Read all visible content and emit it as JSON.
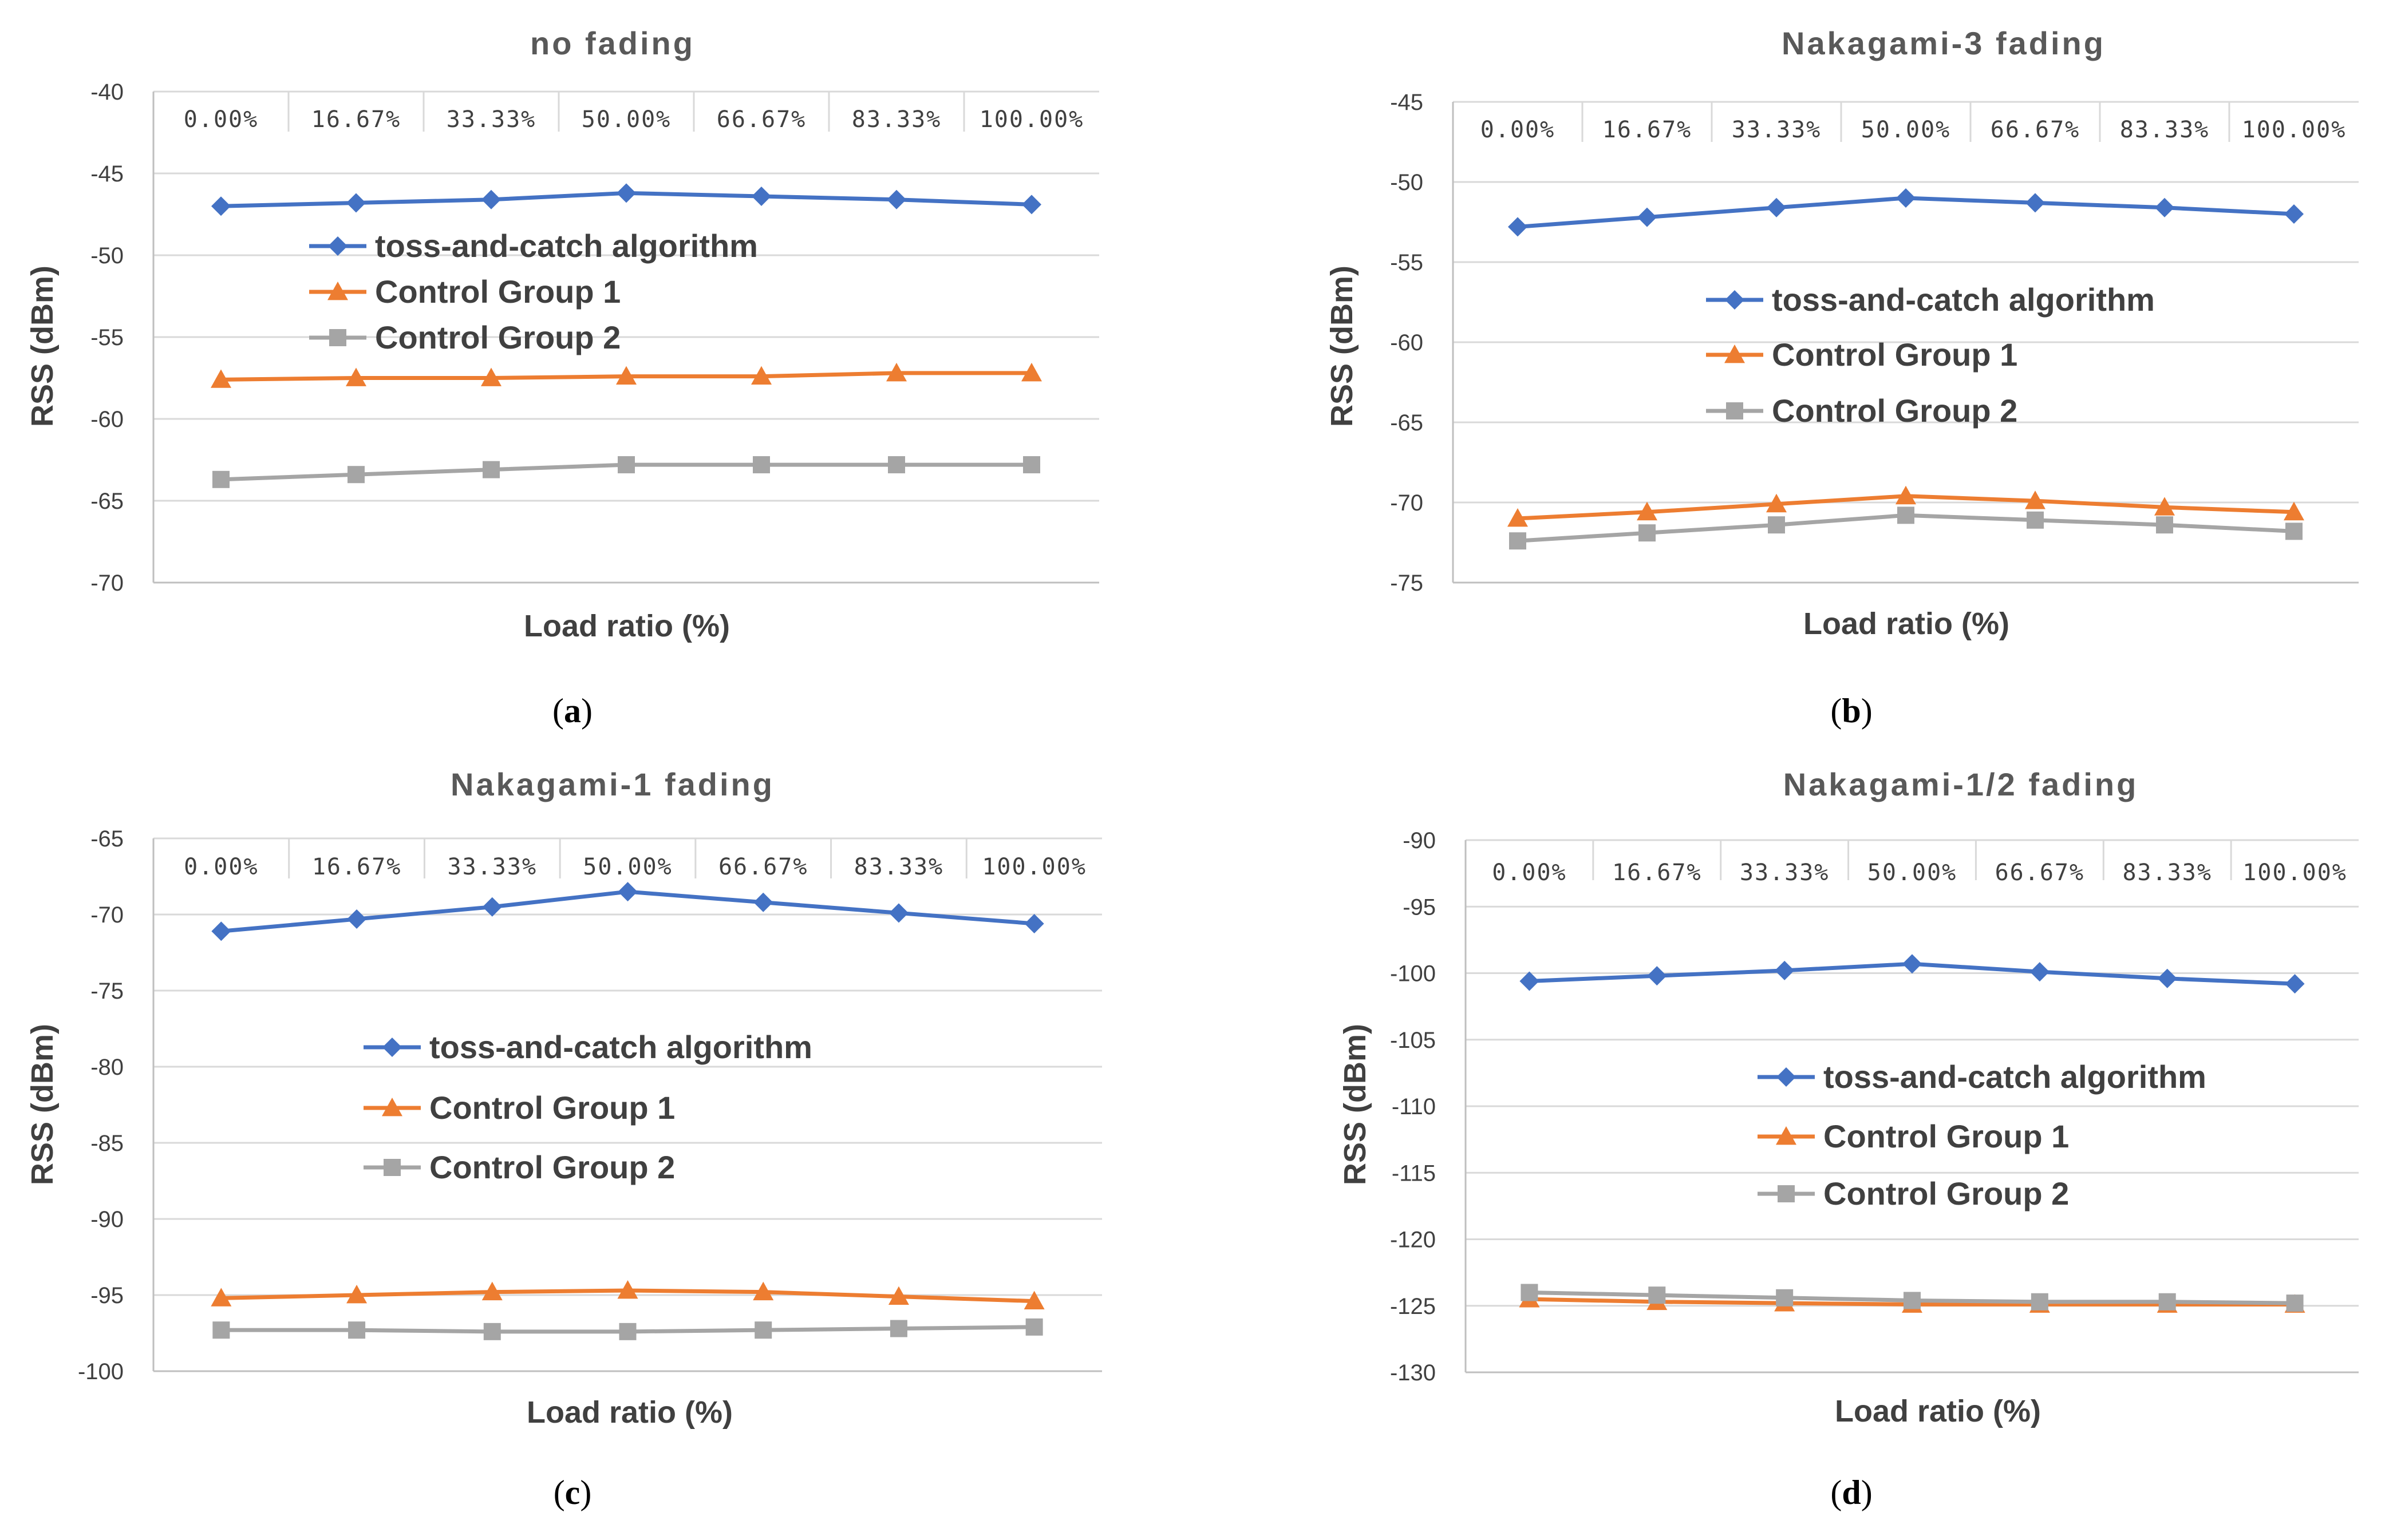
{
  "chart_data": [
    {
      "type": "line",
      "title": "no fading",
      "xlabel": "Load ratio (%)",
      "ylabel": "RSS (dBm)",
      "ylim": [
        -70,
        -40
      ],
      "yticks": [
        -40,
        -45,
        -50,
        -55,
        -60,
        -65,
        -70
      ],
      "categories": [
        "0.00%",
        "16.67%",
        "33.33%",
        "50.00%",
        "66.67%",
        "83.33%",
        "100.00%"
      ],
      "caption": "a",
      "legend_position": "middle-left",
      "series": [
        {
          "name": "toss-and-catch algorithm",
          "color": "#4472c4",
          "marker": "diamond",
          "values": [
            -47.0,
            -46.8,
            -46.6,
            -46.2,
            -46.4,
            -46.6,
            -46.9
          ]
        },
        {
          "name": "Control Group 1",
          "color": "#ed7d31",
          "marker": "triangle",
          "values": [
            -57.6,
            -57.5,
            -57.5,
            -57.4,
            -57.4,
            -57.2,
            -57.2
          ]
        },
        {
          "name": "Control Group 2",
          "color": "#a5a5a5",
          "marker": "square",
          "values": [
            -63.7,
            -63.4,
            -63.1,
            -62.8,
            -62.8,
            -62.8,
            -62.8
          ]
        }
      ]
    },
    {
      "type": "line",
      "title": "Nakagami-3 fading",
      "xlabel": "Load ratio (%)",
      "ylabel": "RSS (dBm)",
      "ylim": [
        -75,
        -45
      ],
      "yticks": [
        -45,
        -50,
        -55,
        -60,
        -65,
        -70,
        -75
      ],
      "categories": [
        "0.00%",
        "16.67%",
        "33.33%",
        "50.00%",
        "66.67%",
        "83.33%",
        "100.00%"
      ],
      "caption": "b",
      "legend_position": "middle-left",
      "series": [
        {
          "name": "toss-and-catch algorithm",
          "color": "#4472c4",
          "marker": "diamond",
          "values": [
            -52.8,
            -52.2,
            -51.6,
            -51.0,
            -51.3,
            -51.6,
            -52.0
          ]
        },
        {
          "name": "Control Group 1",
          "color": "#ed7d31",
          "marker": "triangle",
          "values": [
            -71.0,
            -70.6,
            -70.1,
            -69.6,
            -69.9,
            -70.3,
            -70.6
          ]
        },
        {
          "name": "Control Group 2",
          "color": "#a5a5a5",
          "marker": "square",
          "values": [
            -72.4,
            -71.9,
            -71.4,
            -70.8,
            -71.1,
            -71.4,
            -71.8
          ]
        }
      ]
    },
    {
      "type": "line",
      "title": "Nakagami-1 fading",
      "xlabel": "Load ratio (%)",
      "ylabel": "RSS (dBm)",
      "ylim": [
        -100,
        -65
      ],
      "yticks": [
        -65,
        -70,
        -75,
        -80,
        -85,
        -90,
        -95,
        -100
      ],
      "categories": [
        "0.00%",
        "16.67%",
        "33.33%",
        "50.00%",
        "66.67%",
        "83.33%",
        "100.00%"
      ],
      "caption": "c",
      "legend_position": "middle-left",
      "series": [
        {
          "name": "toss-and-catch algorithm",
          "color": "#4472c4",
          "marker": "diamond",
          "values": [
            -71.1,
            -70.3,
            -69.5,
            -68.5,
            -69.2,
            -69.9,
            -70.6
          ]
        },
        {
          "name": "Control Group 1",
          "color": "#ed7d31",
          "marker": "triangle",
          "values": [
            -95.2,
            -95.0,
            -94.8,
            -94.7,
            -94.8,
            -95.1,
            -95.4
          ]
        },
        {
          "name": "Control Group 2",
          "color": "#a5a5a5",
          "marker": "square",
          "values": [
            -97.3,
            -97.3,
            -97.4,
            -97.4,
            -97.3,
            -97.2,
            -97.1
          ]
        }
      ]
    },
    {
      "type": "line",
      "title": "Nakagami-1/2 fading",
      "xlabel": "Load ratio (%)",
      "ylabel": "RSS (dBm)",
      "ylim": [
        -130,
        -90
      ],
      "yticks": [
        -90,
        -95,
        -100,
        -105,
        -110,
        -115,
        -120,
        -125,
        -130
      ],
      "categories": [
        "0.00%",
        "16.67%",
        "33.33%",
        "50.00%",
        "66.67%",
        "83.33%",
        "100.00%"
      ],
      "caption": "d",
      "legend_position": "middle-left",
      "series": [
        {
          "name": "toss-and-catch algorithm",
          "color": "#4472c4",
          "marker": "diamond",
          "values": [
            -100.6,
            -100.2,
            -99.8,
            -99.3,
            -99.9,
            -100.4,
            -100.8
          ]
        },
        {
          "name": "Control Group 1",
          "color": "#ed7d31",
          "marker": "triangle",
          "values": [
            -124.5,
            -124.7,
            -124.8,
            -124.9,
            -124.9,
            -124.9,
            -124.9
          ]
        },
        {
          "name": "Control Group 2",
          "color": "#a5a5a5",
          "marker": "square",
          "values": [
            -124.0,
            -124.2,
            -124.4,
            -124.6,
            -124.7,
            -124.7,
            -124.8
          ]
        }
      ]
    }
  ]
}
